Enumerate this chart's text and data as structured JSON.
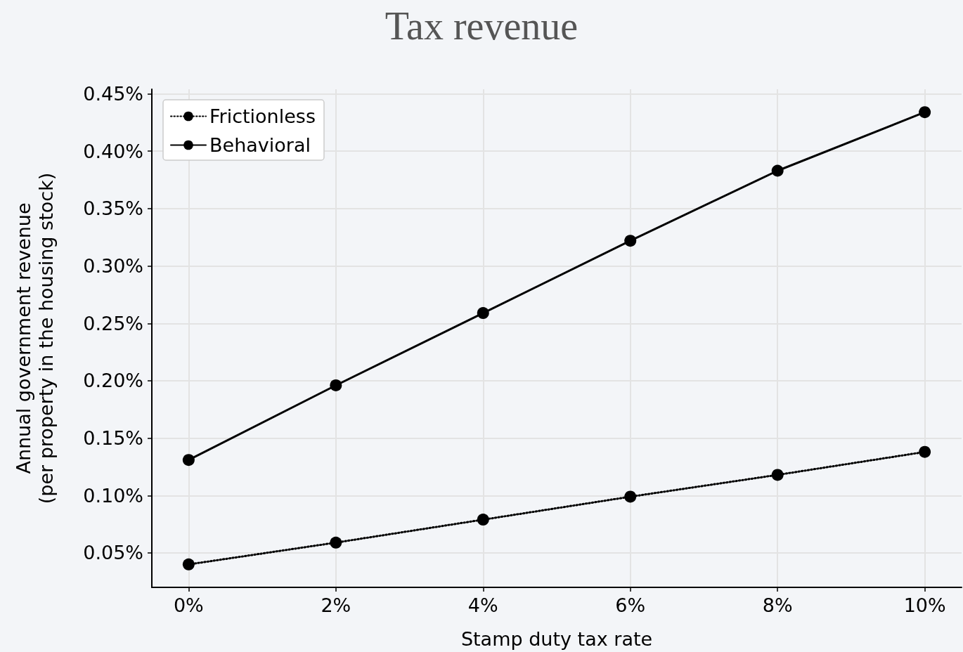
{
  "chart_data": {
    "type": "line",
    "title": "Tax revenue",
    "xlabel": "Stamp duty tax rate",
    "ylabel": "Annual government revenue\n(per property in the housing stock)",
    "x": [
      0,
      2,
      4,
      6,
      8,
      10
    ],
    "series": [
      {
        "name": "Frictionless",
        "color": "#000000",
        "line_style": "dotted",
        "values": [
          0.04,
          0.059,
          0.079,
          0.099,
          0.118,
          0.138
        ]
      },
      {
        "name": "Behavioral",
        "color": "#000000",
        "line_style": "solid",
        "values": [
          0.131,
          0.196,
          0.259,
          0.322,
          0.383,
          0.434
        ]
      }
    ],
    "xlim": [
      -0.5,
      10.5
    ],
    "xticks": [
      {
        "value": 0,
        "label": "0%"
      },
      {
        "value": 2,
        "label": "2%"
      },
      {
        "value": 4,
        "label": "4%"
      },
      {
        "value": 6,
        "label": "6%"
      },
      {
        "value": 8,
        "label": "8%"
      },
      {
        "value": 10,
        "label": "10%"
      }
    ],
    "ylim": [
      0.02,
      0.454
    ],
    "yticks": [
      {
        "value": 0.05,
        "label": "0.05%"
      },
      {
        "value": 0.1,
        "label": "0.10%"
      },
      {
        "value": 0.15,
        "label": "0.15%"
      },
      {
        "value": 0.2,
        "label": "0.20%"
      },
      {
        "value": 0.25,
        "label": "0.25%"
      },
      {
        "value": 0.3,
        "label": "0.30%"
      },
      {
        "value": 0.35,
        "label": "0.35%"
      },
      {
        "value": 0.4,
        "label": "0.40%"
      },
      {
        "value": 0.45,
        "label": "0.45%"
      }
    ],
    "grid": true,
    "legend": "top left",
    "marker": "circle"
  }
}
